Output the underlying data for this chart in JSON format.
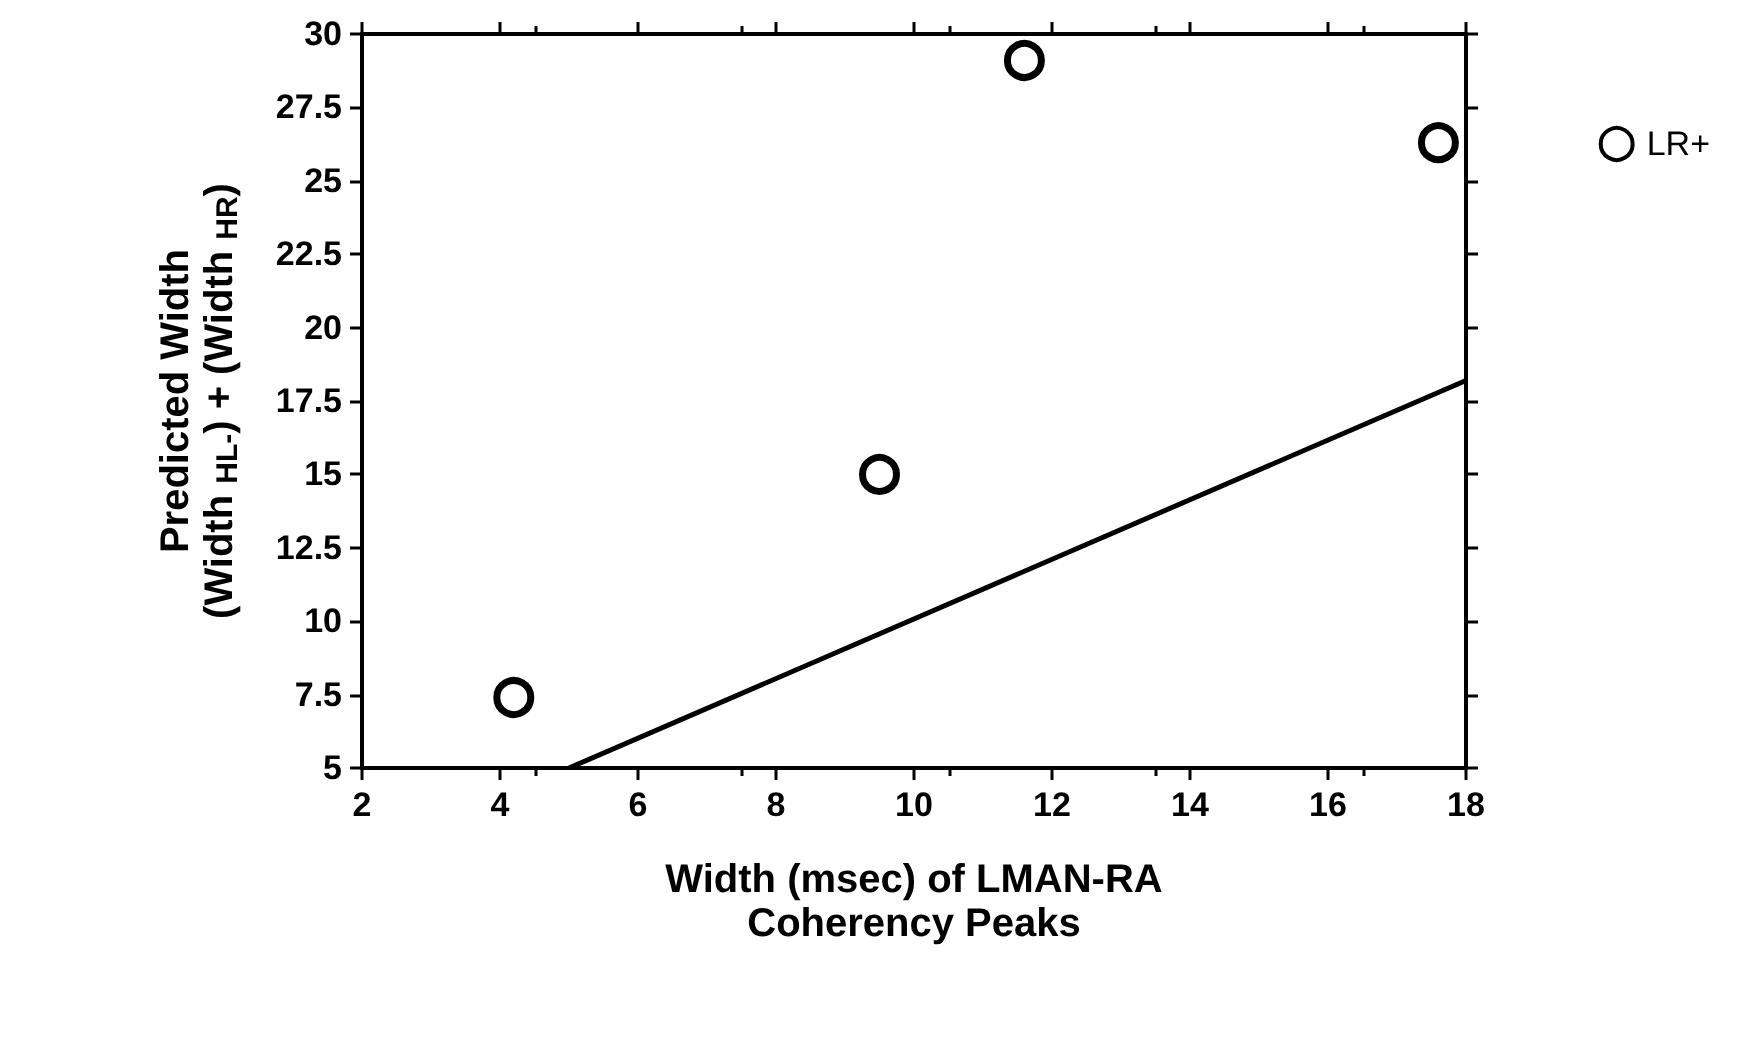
{
  "chart_data": {
    "type": "scatter",
    "xlabel": "Width (msec) of LMAN-RA\nCoherency Peaks",
    "ylabel": "Predicted Width\n(Width $_{HL-}$) + (Width $_{HR}$)",
    "series": [
      {
        "name": "LR+",
        "color": "#000000",
        "marker": "circle",
        "x": [
          4.2,
          9.5,
          11.6,
          17.6
        ],
        "values": [
          7.4,
          15.0,
          29.1,
          26.3
        ]
      },
      {
        "type": "line",
        "color": "#000000",
        "marker": "none",
        "line_style": "solid",
        "x": [
          5,
          18
        ],
        "values": [
          5,
          18.2
        ]
      }
    ],
    "xlim": [
      2,
      18
    ],
    "xticks": [
      2,
      4,
      6,
      8,
      10,
      12,
      14,
      16,
      18
    ],
    "ylim": [
      5,
      30
    ],
    "yticks": [
      5,
      7.5,
      10,
      12.5,
      15,
      17.5,
      20,
      22.5,
      25,
      27.5,
      30
    ],
    "grid": false,
    "legend": "top right"
  }
}
